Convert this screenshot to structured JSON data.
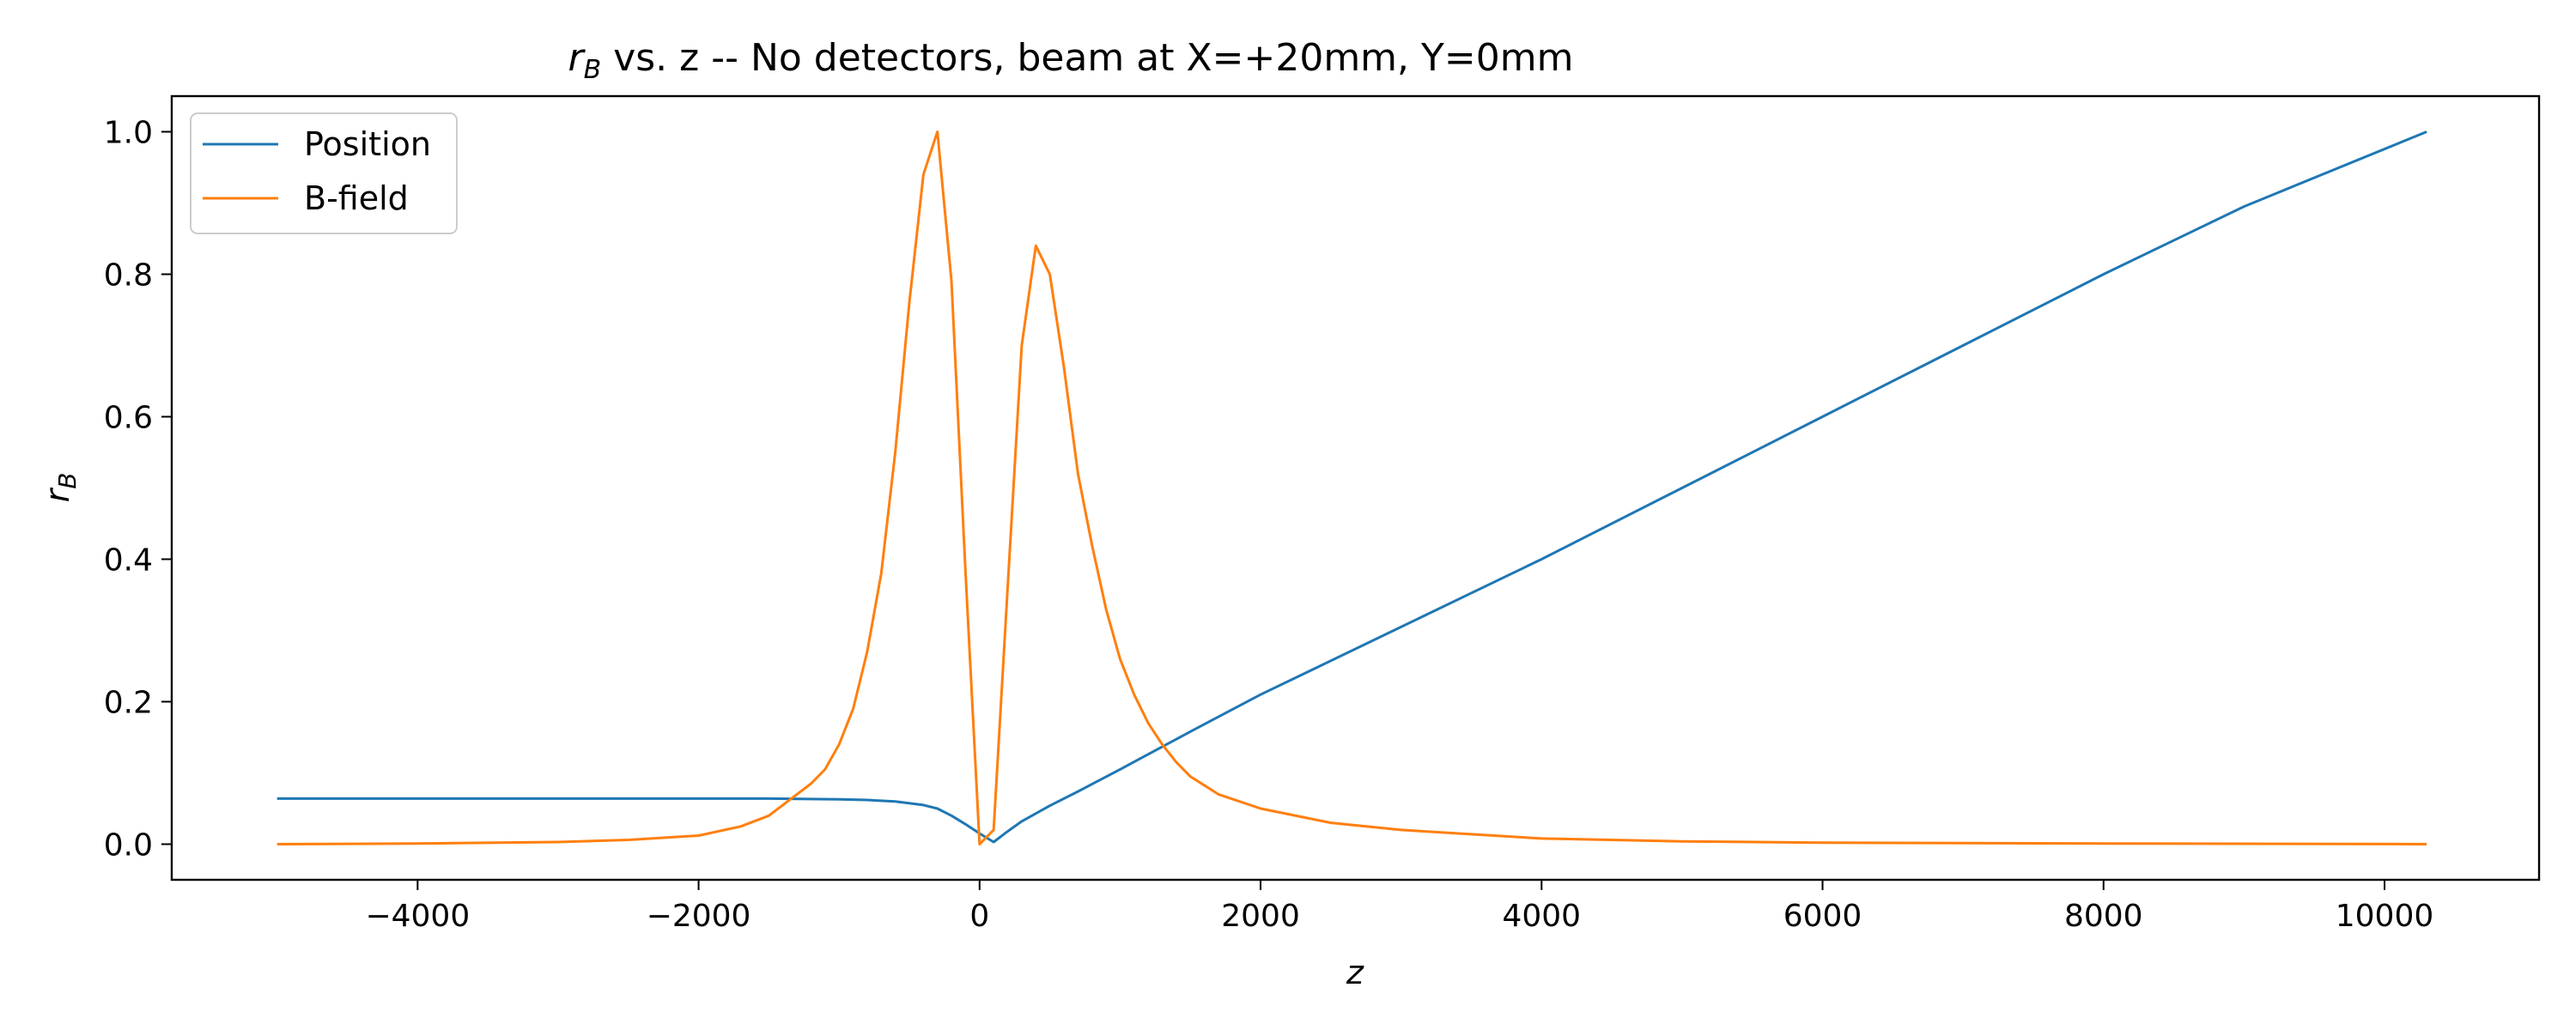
{
  "chart_data": {
    "type": "line",
    "title_prefix": "r",
    "title_sub": "B",
    "title_rest": " vs. z -- No detectors, beam at X=+20mm, Y=0mm",
    "xlabel": "z",
    "ylabel": "r",
    "ylabel_sub": "B",
    "xlim": [
      -5750,
      11100
    ],
    "ylim": [
      -0.05,
      1.05
    ],
    "xticks": [
      -4000,
      -2000,
      0,
      2000,
      4000,
      6000,
      8000,
      10000
    ],
    "xtick_labels": [
      "−4000",
      "−2000",
      "0",
      "2000",
      "4000",
      "6000",
      "8000",
      "10000"
    ],
    "yticks": [
      0.0,
      0.2,
      0.4,
      0.6,
      0.8,
      1.0
    ],
    "ytick_labels": [
      "0.0",
      "0.2",
      "0.4",
      "0.6",
      "0.8",
      "1.0"
    ],
    "grid": false,
    "legend_position": "top-left",
    "series": [
      {
        "name": "Position",
        "color": "#1f77b4",
        "x": [
          -5000,
          -4000,
          -3000,
          -2000,
          -1500,
          -1000,
          -800,
          -600,
          -400,
          -300,
          -200,
          -100,
          0,
          100,
          200,
          300,
          500,
          700,
          1000,
          1500,
          2000,
          3000,
          4000,
          5000,
          6000,
          7000,
          8000,
          9000,
          10300
        ],
        "y": [
          0.064,
          0.064,
          0.064,
          0.064,
          0.064,
          0.063,
          0.062,
          0.06,
          0.055,
          0.05,
          0.04,
          0.028,
          0.015,
          0.003,
          0.018,
          0.032,
          0.054,
          0.074,
          0.105,
          0.158,
          0.21,
          0.305,
          0.4,
          0.5,
          0.6,
          0.7,
          0.8,
          0.895,
          1.0
        ]
      },
      {
        "name": "B-field",
        "color": "#ff7f0e",
        "x": [
          -5000,
          -4000,
          -3000,
          -2500,
          -2000,
          -1700,
          -1500,
          -1300,
          -1200,
          -1100,
          -1000,
          -900,
          -800,
          -700,
          -600,
          -500,
          -400,
          -300,
          -200,
          -100,
          0,
          100,
          200,
          300,
          400,
          500,
          600,
          700,
          800,
          900,
          1000,
          1100,
          1200,
          1300,
          1400,
          1500,
          1700,
          2000,
          2500,
          3000,
          4000,
          5000,
          6000,
          8000,
          10300
        ],
        "y": [
          0.0,
          0.001,
          0.003,
          0.006,
          0.012,
          0.025,
          0.04,
          0.07,
          0.085,
          0.105,
          0.14,
          0.19,
          0.27,
          0.38,
          0.55,
          0.76,
          0.94,
          1.0,
          0.79,
          0.38,
          0.0,
          0.02,
          0.36,
          0.7,
          0.84,
          0.8,
          0.67,
          0.52,
          0.42,
          0.33,
          0.26,
          0.21,
          0.17,
          0.14,
          0.115,
          0.095,
          0.07,
          0.05,
          0.03,
          0.02,
          0.008,
          0.004,
          0.002,
          0.001,
          0.0
        ]
      }
    ]
  }
}
